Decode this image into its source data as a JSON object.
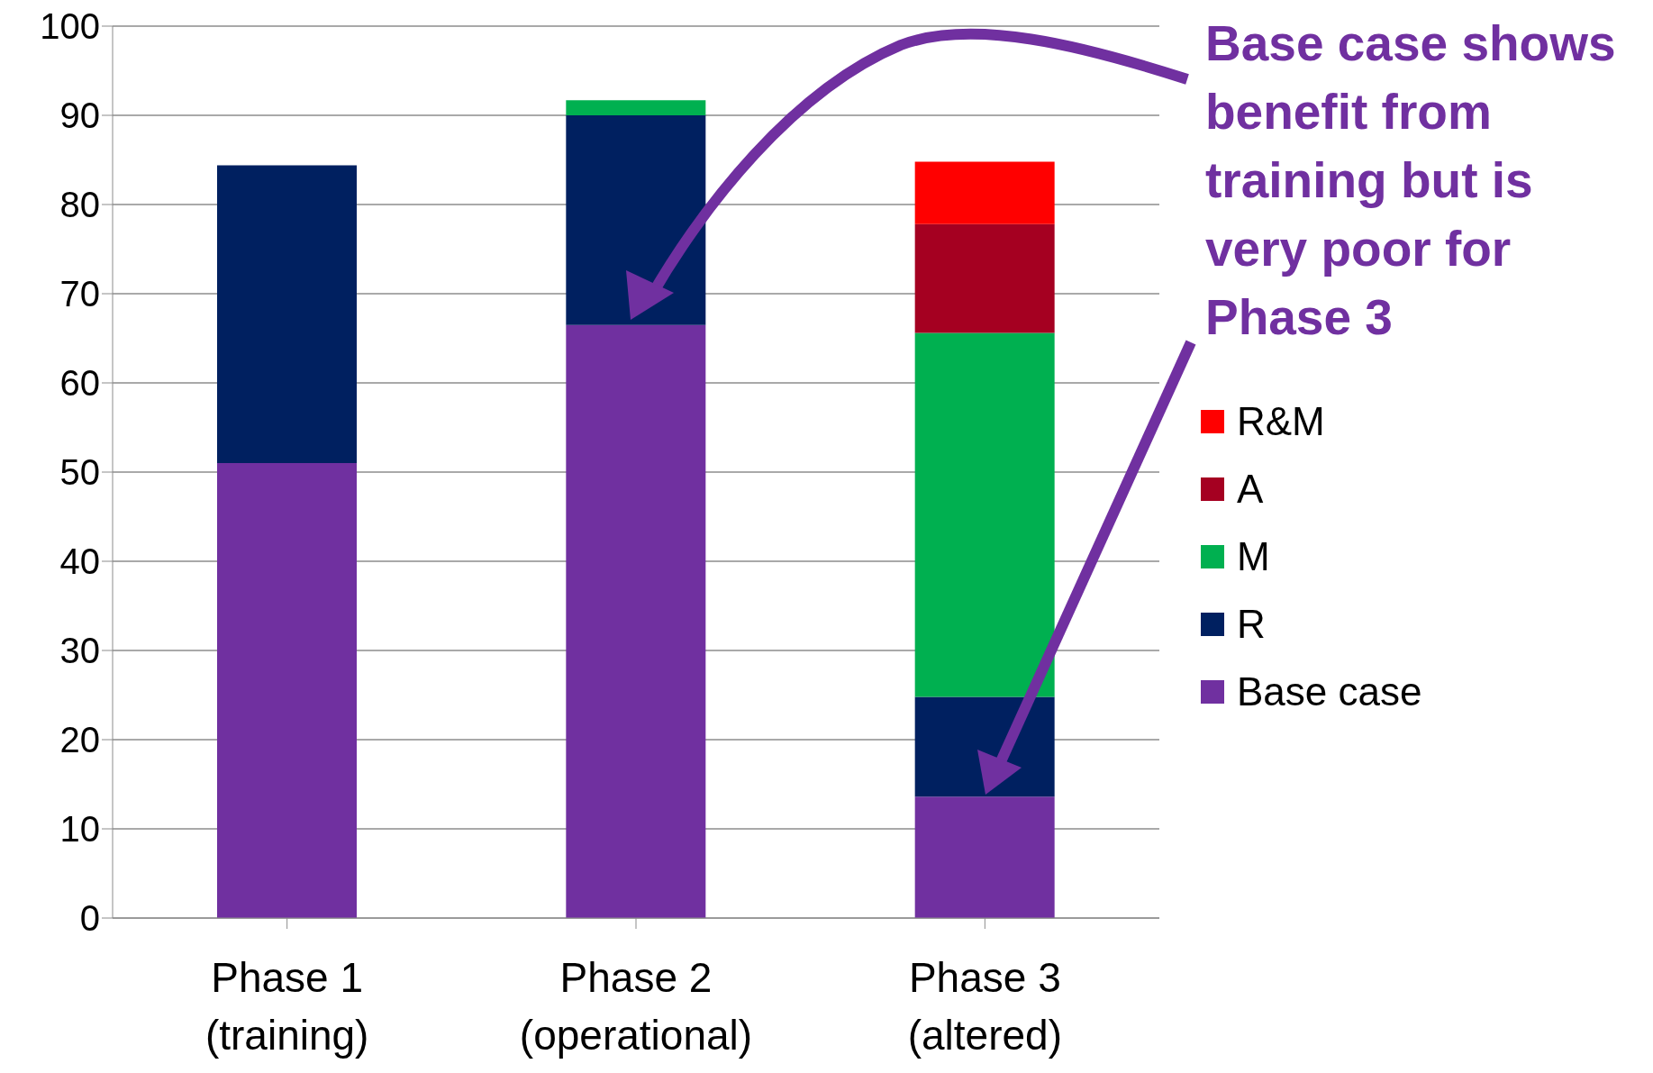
{
  "chart_data": {
    "type": "bar",
    "stacked": true,
    "categories": [
      "Phase 1 (training)",
      "Phase 2 (operational)",
      "Phase 3 (altered)"
    ],
    "series": [
      {
        "name": "Base case",
        "color": "#7030a0",
        "values": [
          51,
          66.5,
          13.6
        ]
      },
      {
        "name": "R",
        "color": "#002060",
        "values": [
          33.4,
          23.5,
          11.2
        ]
      },
      {
        "name": "M",
        "color": "#00b050",
        "values": [
          null,
          1.7,
          40.8
        ]
      },
      {
        "name": "A",
        "color": "#a50021",
        "values": [
          null,
          null,
          12.2
        ]
      },
      {
        "name": "R&M",
        "color": "#ff0000",
        "values": [
          null,
          null,
          7
        ]
      }
    ],
    "ylim": [
      0,
      100
    ],
    "yticks": [
      0,
      10,
      20,
      30,
      40,
      50,
      60,
      70,
      80,
      90,
      100
    ],
    "grid": "y",
    "legend": "right",
    "annotations": [
      "Base case shows benefit from training but is very poor for Phase 3"
    ]
  }
}
